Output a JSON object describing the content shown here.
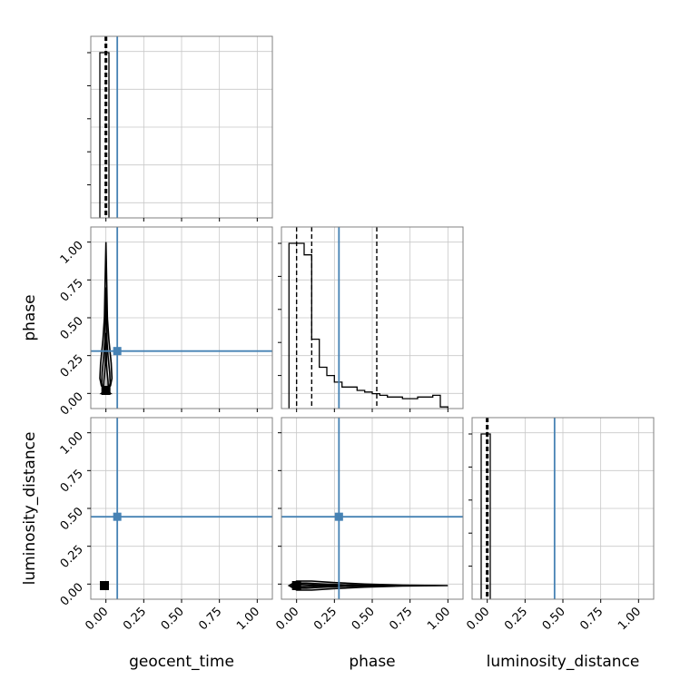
{
  "chart_data": {
    "type": "corner",
    "parameters": [
      "geocent_time",
      "phase",
      "luminosity_distance"
    ],
    "tick_labels": [
      "0.00",
      "0.25",
      "0.50",
      "0.75",
      "1.00"
    ],
    "axis_range": [
      -0.1,
      1.1
    ],
    "grid": true,
    "colors": {
      "truth": "#4682b4",
      "hist": "#000000",
      "quantile": "#000000",
      "contour_fill": "#d9d9d9",
      "grid": "#c8c8c8",
      "frame": "#808080"
    },
    "truths": {
      "geocent_time": 0.075,
      "phase": 0.28,
      "luminosity_distance": 0.445
    },
    "diagonal": [
      {
        "parameter": "geocent_time",
        "bin_edges": [
          -0.04,
          0.02
        ],
        "counts": [
          1.0
        ],
        "quantiles": [
          -0.005,
          0.0,
          0.005
        ]
      },
      {
        "parameter": "phase",
        "bin_edges": [
          -0.05,
          0.0,
          0.05,
          0.1,
          0.15,
          0.2,
          0.25,
          0.3,
          0.35,
          0.4,
          0.45,
          0.5,
          0.55,
          0.6,
          0.65,
          0.7,
          0.75,
          0.8,
          0.85,
          0.9,
          0.95,
          1.0
        ],
        "counts": [
          1.0,
          1.0,
          0.93,
          0.42,
          0.25,
          0.2,
          0.16,
          0.13,
          0.13,
          0.11,
          0.1,
          0.09,
          0.08,
          0.07,
          0.07,
          0.06,
          0.06,
          0.07,
          0.07,
          0.08,
          0.01
        ],
        "quantiles": [
          0.0,
          0.1,
          0.53
        ]
      },
      {
        "parameter": "luminosity_distance",
        "bin_edges": [
          -0.04,
          0.02
        ],
        "counts": [
          1.0
        ],
        "quantiles": [
          -0.005,
          0.0,
          0.005
        ]
      }
    ],
    "contours": [
      {
        "x": "geocent_time",
        "y": "phase",
        "shape": "vertical",
        "center": [
          0.0,
          0.02
        ],
        "profile": [
          [
            -0.03,
            0.0
          ],
          [
            0.03,
            0.05
          ],
          [
            0.04,
            0.1
          ],
          [
            0.035,
            0.2
          ],
          [
            0.02,
            0.35
          ],
          [
            0.01,
            0.5
          ],
          [
            0.005,
            0.75
          ],
          [
            0.0,
            1.0
          ]
        ]
      },
      {
        "x": "geocent_time",
        "y": "luminosity_distance",
        "shape": "point",
        "center": [
          -0.01,
          -0.01
        ]
      },
      {
        "x": "phase",
        "y": "luminosity_distance",
        "shape": "horizontal",
        "center": [
          0.0,
          -0.01
        ],
        "profile": [
          [
            -0.05,
            0.0
          ],
          [
            0.0,
            0.03
          ],
          [
            0.1,
            0.03
          ],
          [
            0.25,
            0.02
          ],
          [
            0.45,
            0.01
          ],
          [
            0.7,
            0.003
          ],
          [
            1.0,
            0.0
          ]
        ]
      }
    ]
  }
}
